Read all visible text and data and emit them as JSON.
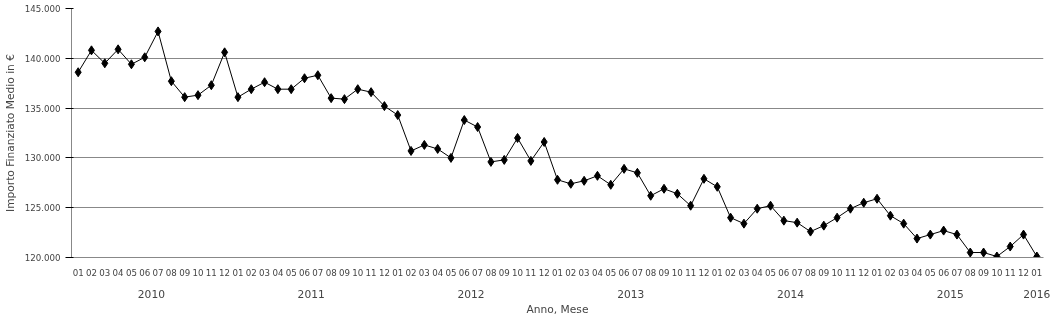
{
  "chart_data": {
    "type": "line",
    "xlabel": "Anno, Mese",
    "ylabel": "Importo Finanziato Medio in €",
    "categories": [
      "01",
      "02",
      "03",
      "04",
      "05",
      "06",
      "07",
      "08",
      "09",
      "10",
      "11",
      "12",
      "01",
      "02",
      "03",
      "04",
      "05",
      "06",
      "07",
      "08",
      "09",
      "10",
      "11",
      "12",
      "01",
      "02",
      "03",
      "04",
      "05",
      "06",
      "07",
      "08",
      "09",
      "10",
      "11",
      "12",
      "01",
      "02",
      "03",
      "04",
      "05",
      "06",
      "07",
      "08",
      "09",
      "10",
      "11",
      "12",
      "01",
      "02",
      "03",
      "04",
      "05",
      "06",
      "07",
      "08",
      "09",
      "10",
      "11",
      "12",
      "01",
      "02",
      "03",
      "04",
      "05",
      "06",
      "07",
      "08",
      "09",
      "10",
      "11",
      "12",
      "01"
    ],
    "series": [
      {
        "color": "#000000",
        "values": [
          138600,
          140800,
          139500,
          140900,
          139400,
          140100,
          142700,
          137700,
          136100,
          136300,
          137300,
          140600,
          136100,
          136900,
          137600,
          136900,
          136900,
          138000,
          138300,
          136000,
          135900,
          136900,
          136600,
          135200,
          134300,
          130700,
          131300,
          130900,
          130000,
          133800,
          133100,
          129600,
          129800,
          132000,
          129700,
          131600,
          127800,
          127400,
          127700,
          128200,
          127300,
          128900,
          128500,
          126200,
          126900,
          126400,
          125200,
          127900,
          127100,
          124000,
          123400,
          124900,
          125200,
          123700,
          123500,
          122600,
          123200,
          124000,
          124900,
          125500,
          125900,
          124200,
          123400,
          121900,
          122300,
          122700,
          122300,
          120500,
          120500,
          120100,
          121100,
          122300,
          120100
        ]
      }
    ],
    "ylim": [
      120000,
      145000
    ],
    "yticks": [
      {
        "value": 120000,
        "label": "120.000"
      },
      {
        "value": 125000,
        "label": "125.000"
      },
      {
        "value": 130000,
        "label": "130.000"
      },
      {
        "value": 135000,
        "label": "135.000"
      },
      {
        "value": 140000,
        "label": "140.000"
      },
      {
        "value": 145000,
        "label": "145.000"
      }
    ],
    "grid": "y",
    "marker": "diamond",
    "line_style": "solid",
    "annotations": [
      "2010",
      "2011",
      "2012",
      "2013",
      "2014",
      "2015",
      "2016"
    ]
  }
}
